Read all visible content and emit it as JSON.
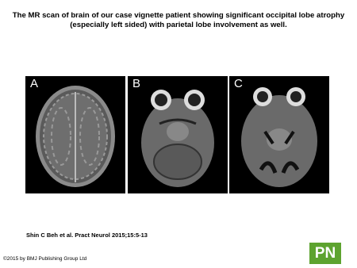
{
  "slide": {
    "title_lines": [
      "The MR scan of brain of our case vignette patient showing significant occipital lobe atrophy",
      "(especially left sided) with parietal lobe involvement as well."
    ],
    "images": [
      {
        "label": "A"
      },
      {
        "label": "B"
      },
      {
        "label": "C"
      }
    ],
    "citation": "Shin C Beh et al. Pract Neurol 2015;15:5-13",
    "copyright": "©2015 by BMJ Publishing Group Ltd",
    "logo": "PN"
  }
}
